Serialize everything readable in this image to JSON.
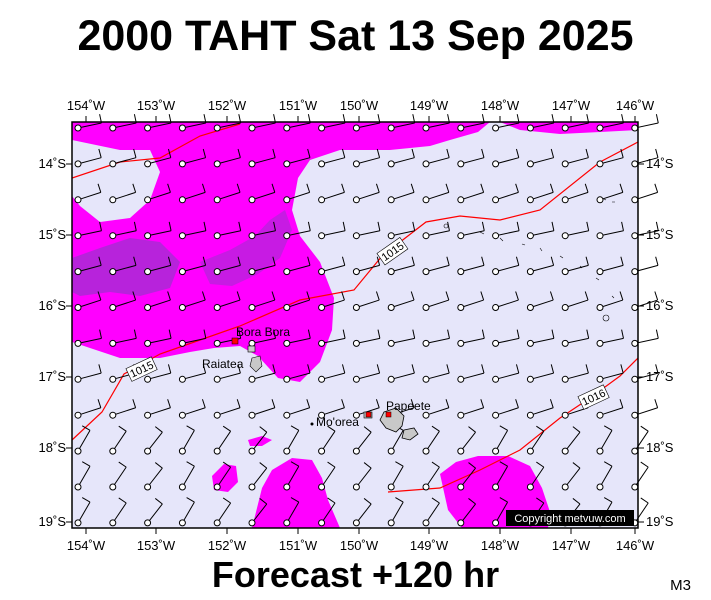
{
  "header": {
    "title": "2000 TAHT Sat 13 Sep 2025"
  },
  "footer": {
    "forecast": "Forecast +120 hr",
    "code": "M3"
  },
  "map": {
    "lon_range": [
      -154,
      -146
    ],
    "lat_range": [
      -19,
      -13.6
    ],
    "lon_ticks": [
      "154˚W",
      "153˚W",
      "152˚W",
      "151˚W",
      "150˚W",
      "149˚W",
      "148˚W",
      "147˚W",
      "146˚W"
    ],
    "lat_ticks": [
      "14˚S",
      "15˚S",
      "16˚S",
      "17˚S",
      "18˚S",
      "19˚S"
    ],
    "places": [
      {
        "name": "Bora Bora",
        "lon": -151.75,
        "lat": -16.5
      },
      {
        "name": "Raiatea",
        "lon": -151.45,
        "lat": -16.83
      },
      {
        "name": "Mo'orea",
        "lon": -149.83,
        "lat": -17.53
      },
      {
        "name": "Papeete",
        "lon": -149.57,
        "lat": -17.53
      }
    ],
    "isobar_labels": [
      "1015",
      "1015",
      "1016"
    ],
    "copyright": "Copyright metvuw.com",
    "colors": {
      "background": "#e6e6fa",
      "rain_light": "#ff00ff",
      "rain_heavy": "#9932cc",
      "isobar": "#ff0000"
    }
  }
}
